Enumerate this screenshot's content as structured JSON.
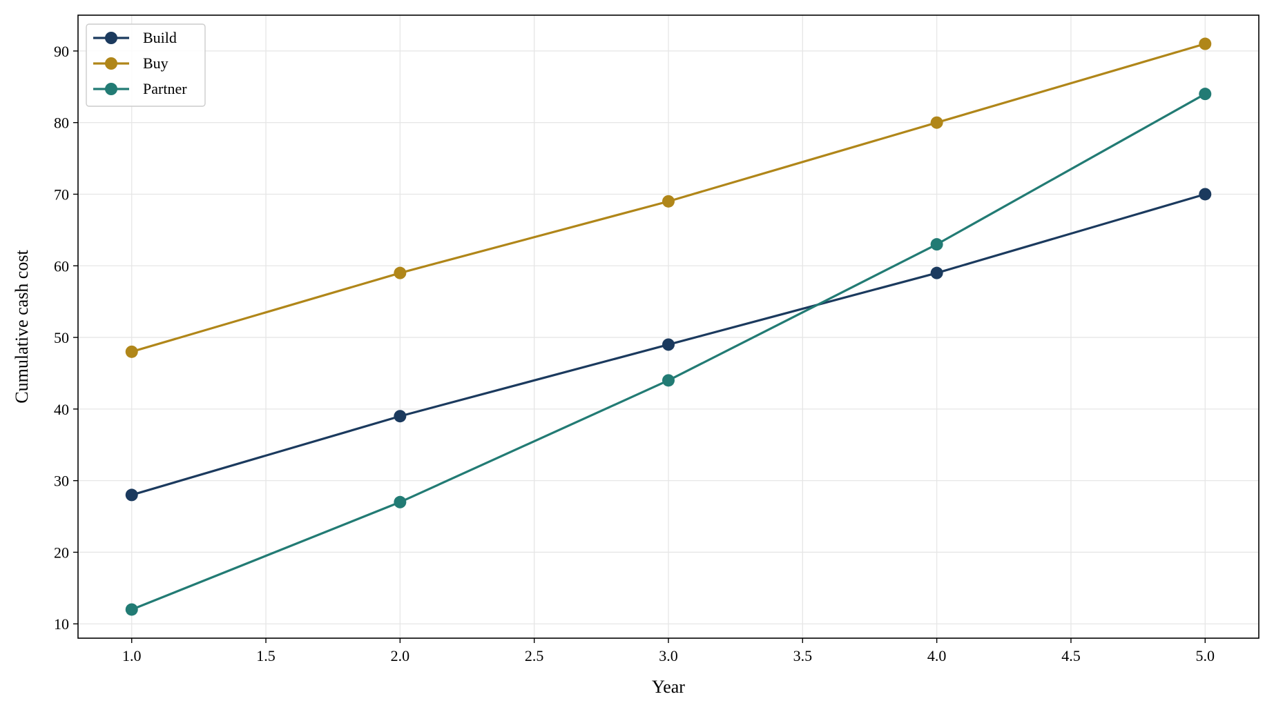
{
  "chart_data": {
    "type": "line",
    "title": "",
    "xlabel": "Year",
    "ylabel": "Cumulative cash cost",
    "x": [
      1,
      2,
      3,
      4,
      5
    ],
    "xlim": [
      0.8,
      5.2
    ],
    "ylim": [
      8,
      95
    ],
    "xticks": [
      1.0,
      1.5,
      2.0,
      2.5,
      3.0,
      3.5,
      4.0,
      4.5,
      5.0
    ],
    "xtick_labels": [
      "1.0",
      "1.5",
      "2.0",
      "2.5",
      "3.0",
      "3.5",
      "4.0",
      "4.5",
      "5.0"
    ],
    "yticks": [
      10,
      20,
      30,
      40,
      50,
      60,
      70,
      80,
      90
    ],
    "ytick_labels": [
      "10",
      "20",
      "30",
      "40",
      "50",
      "60",
      "70",
      "80",
      "90"
    ],
    "grid": true,
    "legend_position": "top-left",
    "series": [
      {
        "name": "Build",
        "color": "#1b3a5e",
        "values": [
          28,
          39,
          49,
          59,
          70
        ]
      },
      {
        "name": "Buy",
        "color": "#b08619",
        "values": [
          48,
          59,
          69,
          80,
          91
        ]
      },
      {
        "name": "Partner",
        "color": "#227b74",
        "values": [
          12,
          27,
          44,
          63,
          84
        ]
      }
    ]
  }
}
